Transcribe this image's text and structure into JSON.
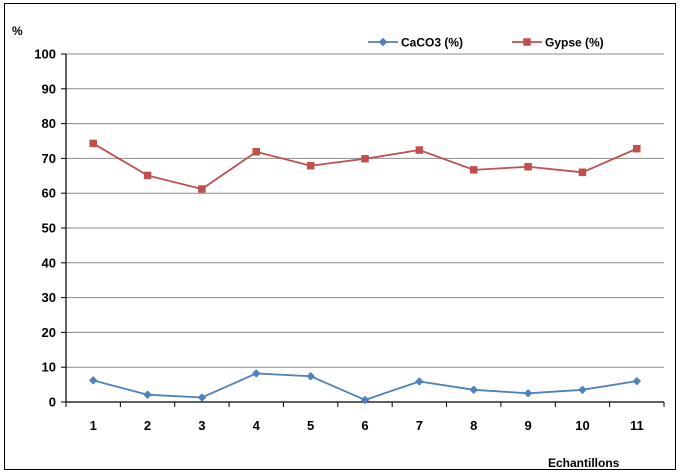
{
  "chart_data": {
    "type": "line",
    "title": "",
    "xlabel": "Echantillons",
    "ylabel": "%",
    "x": [
      "1",
      "2",
      "3",
      "4",
      "5",
      "6",
      "7",
      "8",
      "9",
      "10",
      "11"
    ],
    "ylim": [
      0,
      100
    ],
    "yticks": [
      "0",
      "10",
      "20",
      "30",
      "40",
      "50",
      "60",
      "70",
      "80",
      "90",
      "100"
    ],
    "grid": true,
    "legend": "top-right",
    "series": [
      {
        "name": "CaCO3 (%)",
        "color": "#4F81BD",
        "marker": "diamond",
        "values": [
          6.2,
          2.1,
          1.3,
          8.2,
          7.4,
          0.6,
          5.9,
          3.5,
          2.5,
          3.5,
          6.0
        ]
      },
      {
        "name": "Gypse (%)",
        "color": "#C0504D",
        "marker": "square",
        "values": [
          74.3,
          65.1,
          61.2,
          71.9,
          67.9,
          69.9,
          72.4,
          66.7,
          67.6,
          66.0,
          72.8
        ]
      }
    ]
  }
}
